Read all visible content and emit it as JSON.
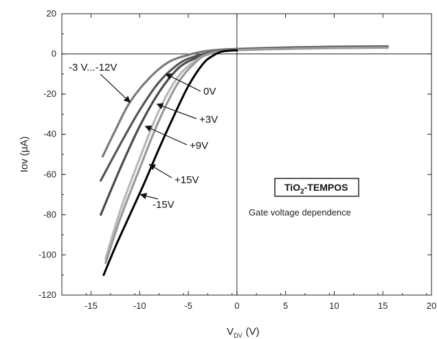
{
  "chart_data": {
    "type": "line",
    "title": "",
    "xlabel": {
      "main": "V",
      "sub": "DV",
      "unit": "(V)"
    },
    "ylabel": "Iov (μA)",
    "xlim": [
      -18,
      20
    ],
    "ylim": [
      -120,
      20
    ],
    "x_ticks": [
      -15,
      -10,
      -5,
      0,
      5,
      10,
      15,
      20
    ],
    "x_tick_labels": [
      "-15",
      "-10",
      "-5",
      "0",
      "5",
      "10",
      "15",
      "20"
    ],
    "y_ticks": [
      -120,
      -100,
      -80,
      -60,
      -40,
      -20,
      0,
      20
    ],
    "y_tick_labels": [
      "-120",
      "-100",
      "-80",
      "-60",
      "-40",
      "-20",
      "0",
      "20"
    ],
    "grid": false,
    "series": [
      {
        "name": "-3 V...-12V",
        "color": "#7a7a7a",
        "x": [
          -13.8,
          -12.5,
          -11,
          -9,
          -7,
          -5,
          -3.5,
          -2,
          0,
          5,
          10,
          15.5
        ],
        "y": [
          -51,
          -38,
          -24,
          -12,
          -4,
          -0.5,
          1.2,
          2.0,
          2.5,
          3.2,
          3.6,
          3.8
        ]
      },
      {
        "name": "0V",
        "color": "#555555",
        "x": [
          -14,
          -12,
          -10,
          -8,
          -6,
          -4.5,
          -3,
          -1.5,
          0,
          5,
          10,
          15.5
        ],
        "y": [
          -63,
          -45,
          -28,
          -14,
          -5,
          -1.5,
          0.5,
          1.8,
          2.3,
          3.0,
          3.4,
          3.6
        ]
      },
      {
        "name": "+3V",
        "color": "#4a4a4a",
        "x": [
          -14,
          -12,
          -10,
          -8,
          -6,
          -4,
          -3,
          -1.5,
          0,
          5,
          10,
          15.5
        ],
        "y": [
          -80,
          -57,
          -36,
          -19,
          -7,
          -1.5,
          0.2,
          1.6,
          2.1,
          2.8,
          3.2,
          3.4
        ]
      },
      {
        "name": "+9V",
        "color": "#b8b8b8",
        "x": [
          -13.5,
          -12,
          -10,
          -8,
          -6,
          -4,
          -2.8,
          -1.5,
          0,
          5,
          10,
          15.5
        ],
        "y": [
          -102,
          -78,
          -52,
          -28,
          -11,
          -2.5,
          0.2,
          1.5,
          2.0,
          2.6,
          3.0,
          3.2
        ]
      },
      {
        "name": "+15V",
        "color": "#999999",
        "x": [
          -13.5,
          -12,
          -10,
          -8,
          -6,
          -4,
          -2.8,
          -1.5,
          0,
          5,
          10,
          15.5
        ],
        "y": [
          -104,
          -82,
          -57,
          -33,
          -14,
          -3,
          0,
          1.4,
          1.9,
          2.5,
          2.9,
          3.1
        ]
      },
      {
        "name": "-15V",
        "color": "#000000",
        "x": [
          -13.7,
          -12.5,
          -11,
          -9.5,
          -8,
          -6.5,
          -5,
          -3.5,
          -2.5,
          -1.5,
          0
        ],
        "y": [
          -110,
          -96,
          -80,
          -64,
          -47,
          -31,
          -16,
          -5,
          -1,
          1.2,
          1.8
        ]
      }
    ],
    "annotations": [
      {
        "text": "-3 V...-12V",
        "series": 0
      },
      {
        "text": "0V",
        "series": 1
      },
      {
        "text": "+3V",
        "series": 2
      },
      {
        "text": "+9V",
        "series": 3
      },
      {
        "text": "+15V",
        "series": 4
      },
      {
        "text": "-15V",
        "series": 5
      }
    ],
    "legend": {
      "title_main": "TiO",
      "title_sub": "2",
      "title_rest": "-TEMPOS",
      "subtitle": "Gate voltage dependence",
      "placement": "center-right"
    }
  }
}
